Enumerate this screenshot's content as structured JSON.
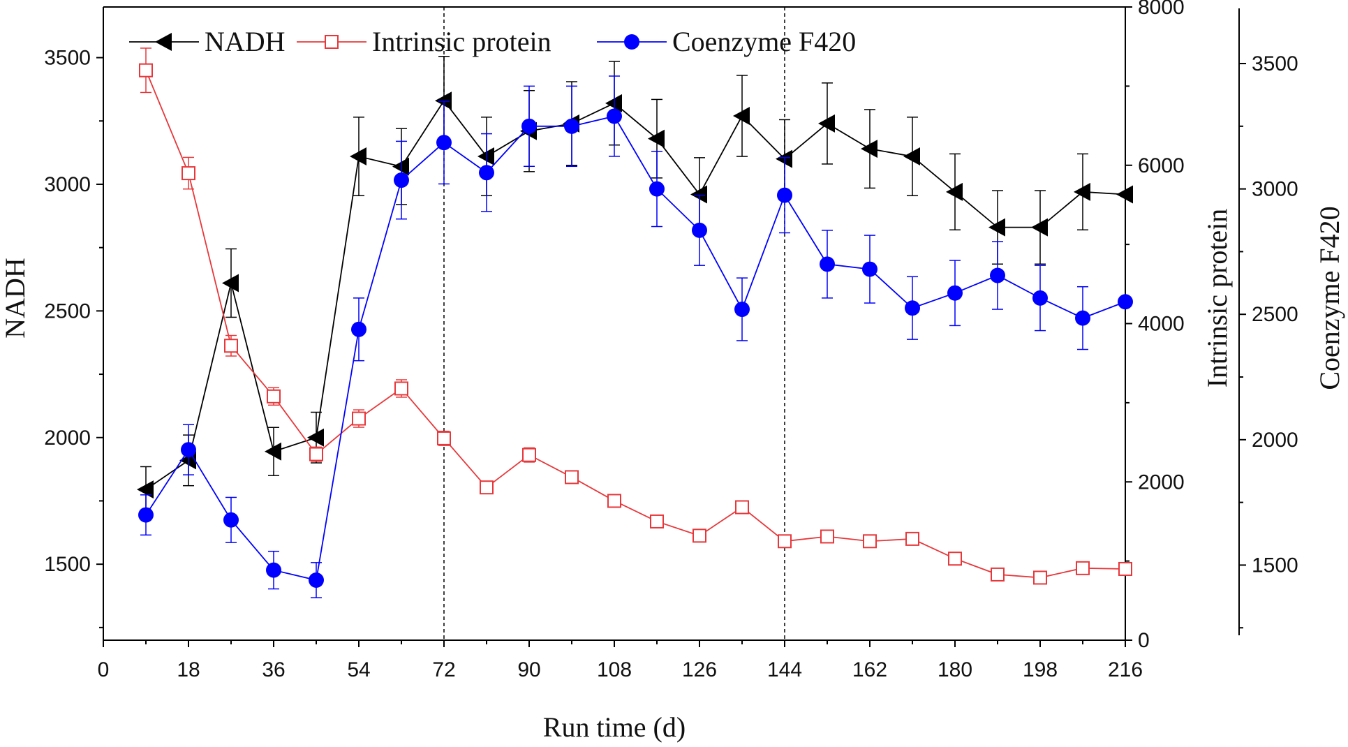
{
  "chart_data": {
    "type": "line",
    "title": "",
    "xlabel": "Run time (d)",
    "xlim": [
      0,
      216
    ],
    "xticks": [
      0,
      18,
      36,
      54,
      72,
      90,
      108,
      126,
      144,
      162,
      180,
      198,
      216
    ],
    "vlines": [
      72,
      144
    ],
    "axes": {
      "left": {
        "label": "NADH",
        "min": 1200,
        "max": 3700,
        "ticks": [
          1500,
          2000,
          2500,
          3000,
          3500
        ]
      },
      "right": {
        "label": "Intrinsic protein",
        "min": 0,
        "max": 8000,
        "ticks": [
          0,
          2000,
          4000,
          6000,
          8000
        ]
      },
      "outer": {
        "label": "Coenzyme F420",
        "min": 1220,
        "max": 3720,
        "ticks": [
          1500,
          2000,
          2500,
          3000,
          3500
        ]
      }
    },
    "legend": {
      "position": "top-left",
      "entries": [
        "NADH",
        "Intrinsic protein",
        "Coenzyme F420"
      ]
    },
    "series": [
      {
        "name": "NADH",
        "axis": "left",
        "color": "#000000",
        "marker": "triangle-left",
        "x": [
          9,
          18,
          27,
          36,
          45,
          54,
          63,
          72,
          81,
          90,
          99,
          108,
          117,
          126,
          135,
          144,
          153,
          162,
          171,
          180,
          189,
          198,
          207,
          216
        ],
        "y": [
          1795,
          1910,
          2610,
          1945,
          2000,
          3110,
          3070,
          3330,
          3110,
          3210,
          3240,
          3320,
          3180,
          2960,
          3270,
          3100,
          3240,
          3140,
          3110,
          2970,
          2830,
          2830,
          2970,
          2960
        ],
        "err": [
          90,
          100,
          135,
          95,
          100,
          155,
          150,
          175,
          155,
          160,
          165,
          165,
          155,
          145,
          160,
          155,
          160,
          155,
          155,
          150,
          145,
          145,
          150,
          0
        ]
      },
      {
        "name": "Intrinsic protein",
        "axis": "right",
        "color": "#e8373a",
        "marker": "square-open",
        "x": [
          9,
          18,
          27,
          36,
          45,
          54,
          63,
          72,
          81,
          90,
          99,
          108,
          117,
          126,
          135,
          144,
          153,
          162,
          171,
          180,
          189,
          198,
          207,
          216
        ],
        "y": [
          7200,
          5900,
          3720,
          3080,
          2350,
          2800,
          3180,
          2550,
          1930,
          2340,
          2060,
          1760,
          1500,
          1320,
          1680,
          1250,
          1310,
          1250,
          1280,
          1030,
          830,
          790,
          910,
          900
        ],
        "err": [
          280,
          200,
          130,
          110,
          90,
          110,
          110,
          90,
          60,
          90,
          70,
          60,
          60,
          70,
          60,
          50,
          70,
          60,
          60,
          80,
          70,
          70,
          60,
          0
        ]
      },
      {
        "name": "Coenzyme F420",
        "axis": "outer",
        "color": "#0000ff",
        "marker": "circle-filled",
        "x": [
          9,
          18,
          27,
          36,
          45,
          54,
          63,
          72,
          81,
          90,
          99,
          108,
          117,
          126,
          135,
          144,
          153,
          162,
          171,
          180,
          189,
          198,
          207,
          216
        ],
        "y": [
          1700,
          1960,
          1680,
          1480,
          1440,
          2440,
          3035,
          3185,
          3065,
          3250,
          3250,
          3290,
          3000,
          2835,
          2520,
          2975,
          2700,
          2680,
          2525,
          2585,
          2655,
          2565,
          2485,
          2550
        ],
        "err": [
          80,
          100,
          90,
          75,
          70,
          125,
          155,
          165,
          155,
          160,
          160,
          160,
          150,
          140,
          125,
          150,
          135,
          135,
          125,
          130,
          135,
          130,
          125,
          0
        ]
      }
    ]
  }
}
